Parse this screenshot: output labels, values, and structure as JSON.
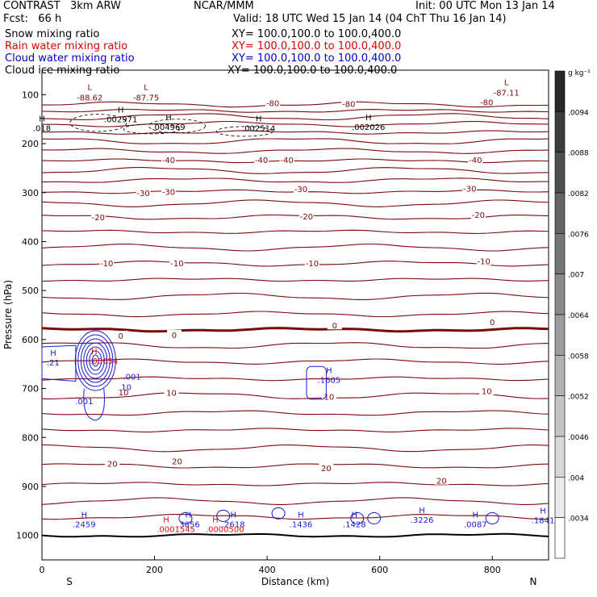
{
  "header": {
    "model": "CONTRAST   3km ARW",
    "org": "NCAR/MMM",
    "init": "Init: 00 UTC Mon 13 Jan 14",
    "fcst": "Fcst:   66 h",
    "valid": "Valid: 18 UTC Wed 15 Jan 14 (04 ChT Thu 16 Jan 14)"
  },
  "legend": [
    {
      "label": "Snow mixing ratio",
      "color": "#000000"
    },
    {
      "label": "Rain water mixing ratio",
      "color": "#e00000",
      "xy": "XY= 100.0,100.0 to 100.0,400.0"
    },
    {
      "label": "Cloud water mixing ratio",
      "color": "#0000cc",
      "xy": "XY= 100.0,100.0 to 100.0,400.0"
    },
    {
      "label": "Cloud ice mixing ratio",
      "color": "#000000",
      "xy": "XY= 100.0,100.0 to 100.0,400.0"
    }
  ],
  "xy_top": "XY= 100.0,100.0 to 100.0,400.0",
  "colorbar": {
    "unit": "g kg⁻¹",
    "ticks": [
      ".0094",
      ".0088",
      ".0082",
      ".0076",
      ".007",
      ".0064",
      ".0058",
      ".0052",
      ".0046",
      ".004",
      ".0034"
    ]
  },
  "colors": {
    "temp": "#7a0a0a",
    "cloud": "#1a1ad0",
    "rain": "#e01010",
    "ice": "#000000"
  },
  "chart_data": {
    "type": "cross-section contour",
    "xlabel": "Distance (km)",
    "ylabel": "Pressure (hPa)",
    "xlim": [
      0,
      900
    ],
    "ylim": [
      1050,
      50
    ],
    "x_ticks": [
      0,
      200,
      400,
      600,
      800
    ],
    "y_ticks": [
      100,
      200,
      300,
      400,
      500,
      600,
      700,
      800,
      900,
      1000
    ],
    "south_label": "S",
    "north_label": "N",
    "temperature_contours": [
      {
        "p": 1000,
        "label": ""
      },
      {
        "p": 962,
        "label": ""
      },
      {
        "p": 930,
        "label": ""
      },
      {
        "p": 895,
        "label": "20"
      },
      {
        "p": 858,
        "label": "20"
      },
      {
        "p": 822,
        "label": "20"
      },
      {
        "p": 785,
        "label": ""
      },
      {
        "p": 750,
        "label": ""
      },
      {
        "p": 715,
        "label": "10"
      },
      {
        "p": 680,
        "label": ""
      },
      {
        "p": 645,
        "label": ""
      },
      {
        "p": 612,
        "label": ""
      },
      {
        "p": 580,
        "label": "0",
        "bold": true
      },
      {
        "p": 548,
        "label": ""
      },
      {
        "p": 512,
        "label": ""
      },
      {
        "p": 478,
        "label": ""
      },
      {
        "p": 445,
        "label": "-10"
      },
      {
        "p": 412,
        "label": ""
      },
      {
        "p": 380,
        "label": ""
      },
      {
        "p": 350,
        "label": "-20"
      },
      {
        "p": 322,
        "label": ""
      },
      {
        "p": 298,
        "label": "-30"
      },
      {
        "p": 275,
        "label": ""
      },
      {
        "p": 255,
        "label": ""
      },
      {
        "p": 235,
        "label": "-40"
      },
      {
        "p": 215,
        "label": ""
      },
      {
        "p": 195,
        "label": ""
      },
      {
        "p": 177,
        "label": ""
      },
      {
        "p": 160,
        "label": ""
      },
      {
        "p": 145,
        "label": ""
      },
      {
        "p": 133,
        "label": ""
      },
      {
        "p": 120,
        "label": "-80"
      }
    ],
    "temp_labels": [
      {
        "x": 140,
        "p": 592,
        "text": "0"
      },
      {
        "x": 235,
        "p": 590,
        "text": "0"
      },
      {
        "x": 520,
        "p": 571,
        "text": "0"
      },
      {
        "x": 800,
        "p": 564,
        "text": "0"
      },
      {
        "x": 145,
        "p": 707,
        "text": "10"
      },
      {
        "x": 230,
        "p": 708,
        "text": "10"
      },
      {
        "x": 510,
        "p": 716,
        "text": "10"
      },
      {
        "x": 790,
        "p": 705,
        "text": "10"
      },
      {
        "x": 125,
        "p": 853,
        "text": "20"
      },
      {
        "x": 240,
        "p": 848,
        "text": "20"
      },
      {
        "x": 505,
        "p": 862,
        "text": "20"
      },
      {
        "x": 710,
        "p": 888,
        "text": "20"
      },
      {
        "x": 115,
        "p": 444,
        "text": "-10"
      },
      {
        "x": 240,
        "p": 444,
        "text": "-10"
      },
      {
        "x": 480,
        "p": 444,
        "text": "-10"
      },
      {
        "x": 785,
        "p": 440,
        "text": "-10"
      },
      {
        "x": 100,
        "p": 350,
        "text": "-20"
      },
      {
        "x": 470,
        "p": 348,
        "text": "-20"
      },
      {
        "x": 775,
        "p": 345,
        "text": "-20"
      },
      {
        "x": 180,
        "p": 300,
        "text": "-30"
      },
      {
        "x": 225,
        "p": 298,
        "text": "-30"
      },
      {
        "x": 460,
        "p": 292,
        "text": "-30"
      },
      {
        "x": 760,
        "p": 291,
        "text": "-30"
      },
      {
        "x": 225,
        "p": 233,
        "text": "-40"
      },
      {
        "x": 390,
        "p": 233,
        "text": "-40"
      },
      {
        "x": 435,
        "p": 233,
        "text": "-40"
      },
      {
        "x": 770,
        "p": 233,
        "text": "-40"
      },
      {
        "x": 410,
        "p": 117,
        "text": "-80"
      },
      {
        "x": 545,
        "p": 118,
        "text": "-80"
      },
      {
        "x": 790,
        "p": 115,
        "text": "-80"
      }
    ],
    "lows": [
      {
        "x": 85,
        "p": 100,
        "value": "-88.62"
      },
      {
        "x": 185,
        "p": 100,
        "value": "-87.75"
      },
      {
        "x": 825,
        "p": 90,
        "value": "-87.11"
      }
    ],
    "ice_highs": [
      {
        "x": 0,
        "p": 168,
        "value": ".018"
      },
      {
        "x": 140,
        "p": 150,
        "value": ".002971"
      },
      {
        "x": 225,
        "p": 165,
        "value": ".004969"
      },
      {
        "x": 385,
        "p": 168,
        "value": ".002514"
      },
      {
        "x": 580,
        "p": 165,
        "value": ".002026"
      }
    ],
    "cloud_highs": [
      {
        "x": 20,
        "p": 650,
        "value": ".21"
      },
      {
        "x": 160,
        "p": 682,
        "value": ".001"
      },
      {
        "x": 150,
        "p": 703,
        "value": "10"
      },
      {
        "x": 75,
        "p": 732,
        "value": ".001"
      },
      {
        "x": 510,
        "p": 685,
        "value": ".1605"
      },
      {
        "x": 75,
        "p": 980,
        "value": ".2459"
      },
      {
        "x": 260,
        "p": 980,
        "value": ".3856"
      },
      {
        "x": 340,
        "p": 980,
        "value": ".2618"
      },
      {
        "x": 460,
        "p": 980,
        "value": ".1436"
      },
      {
        "x": 555,
        "p": 980,
        "value": ".1428"
      },
      {
        "x": 675,
        "p": 971,
        "value": ".3226"
      },
      {
        "x": 770,
        "p": 980,
        "value": ".0087"
      },
      {
        "x": 890,
        "p": 972,
        "value": ".1841"
      }
    ],
    "rain_highs": [
      {
        "x": 110,
        "p": 646,
        "value": ".00054"
      },
      {
        "x": 238,
        "p": 990,
        "value": ".0001545"
      },
      {
        "x": 325,
        "p": 990,
        "value": ".0000500"
      }
    ],
    "cloud_max": {
      "x": 95,
      "p": 643
    }
  }
}
